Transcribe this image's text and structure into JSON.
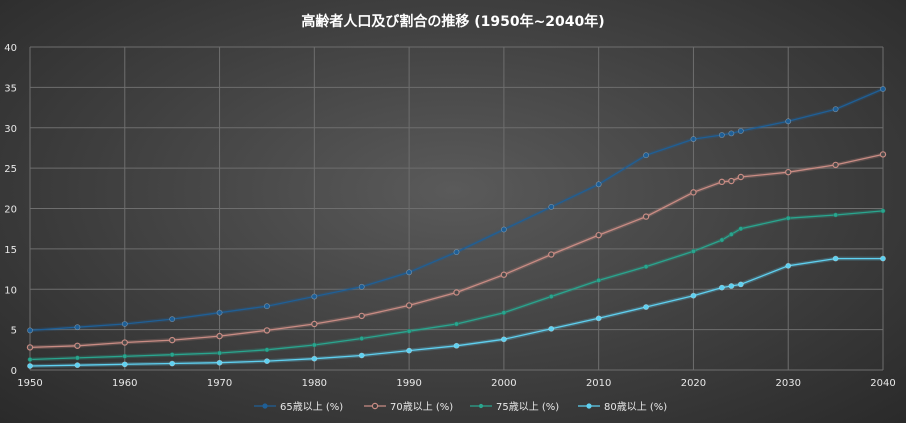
{
  "chart_data": {
    "type": "line",
    "title": "高齢者人口及び割合の推移 (1950年~2040年)",
    "xlabel": "",
    "ylabel": "",
    "xlim": [
      1950,
      2040
    ],
    "ylim": [
      0,
      40
    ],
    "x_ticks": [
      "1950",
      "1960",
      "1970",
      "1980",
      "1990",
      "2000",
      "2010",
      "2020",
      "2030",
      "2040"
    ],
    "y_ticks": [
      "0",
      "5",
      "10",
      "15",
      "20",
      "25",
      "30",
      "35",
      "40"
    ],
    "grid": true,
    "legend_position": "bottom",
    "x": [
      1950,
      1955,
      1960,
      1965,
      1970,
      1975,
      1980,
      1985,
      1990,
      1995,
      2000,
      2005,
      2010,
      2015,
      2020,
      2023,
      2024,
      2025,
      2030,
      2035,
      2040
    ],
    "series": [
      {
        "name": "65歳以上 (%)",
        "color": "#1f5f96",
        "marker": "circle-filled",
        "values": [
          4.9,
          5.3,
          5.7,
          6.3,
          7.1,
          7.9,
          9.1,
          10.3,
          12.1,
          14.6,
          17.4,
          20.2,
          23.0,
          26.6,
          28.6,
          29.1,
          29.3,
          29.6,
          30.8,
          32.3,
          34.8
        ]
      },
      {
        "name": "70歳以上 (%)",
        "color": "#c98c84",
        "marker": "circle-open",
        "values": [
          2.8,
          3.0,
          3.4,
          3.7,
          4.2,
          4.9,
          5.7,
          6.7,
          8.0,
          9.6,
          11.8,
          14.3,
          16.7,
          19.0,
          22.0,
          23.3,
          23.4,
          23.9,
          24.5,
          25.4,
          26.7
        ]
      },
      {
        "name": "75歳以上 (%)",
        "color": "#2aa58e",
        "marker": "circle-small",
        "values": [
          1.3,
          1.5,
          1.7,
          1.9,
          2.1,
          2.5,
          3.1,
          3.9,
          4.8,
          5.7,
          7.1,
          9.1,
          11.1,
          12.8,
          14.7,
          16.1,
          16.8,
          17.5,
          18.8,
          19.2,
          19.7
        ]
      },
      {
        "name": "80歳以上 (%)",
        "color": "#5fd0f0",
        "marker": "circle-filled",
        "values": [
          0.5,
          0.6,
          0.7,
          0.8,
          0.9,
          1.1,
          1.4,
          1.8,
          2.4,
          3.0,
          3.8,
          5.1,
          6.4,
          7.8,
          9.2,
          10.2,
          10.4,
          10.6,
          12.9,
          13.8,
          13.8
        ]
      }
    ]
  }
}
